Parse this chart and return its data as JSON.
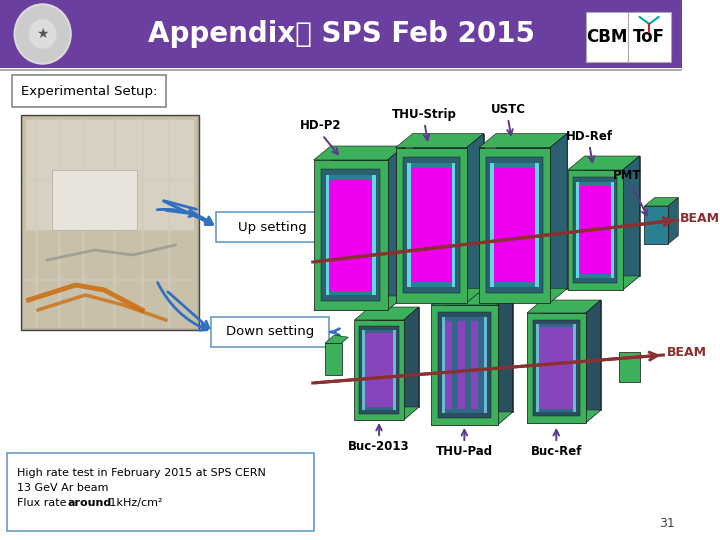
{
  "title": "Appendix： SPS Feb 2015",
  "bg_color": "#f0f0f0",
  "header_color": "#6B3FA0",
  "header_text_color": "#ffffff",
  "slide_number": "31",
  "experimental_setup_label": "Experimental Setup:",
  "labels": {
    "THU_Strip": "THU-Strip",
    "USTC": "USTC",
    "HD_Ref": "HD-Ref",
    "HD_P2": "HD-P2",
    "BEAM_top": "BEAM",
    "Up_setting": "Up setting",
    "PMT": "PMT",
    "Down_setting": "Down setting",
    "BEAM_bot": "BEAM",
    "Buc2013": "Buc-2013",
    "THU_Pad": "THU-Pad",
    "Buc_Ref": "Buc-Ref"
  },
  "beam_color": "#8B3030",
  "arrow_color_purple": "#5B3A8E",
  "arrow_color_blue": "#3070C0",
  "det_green": "#3CB05A",
  "det_dark_teal": "#2A6070",
  "det_teal": "#2A8090",
  "det_cyan": "#60D8E0",
  "det_magenta": "#EE00EE",
  "det_purple": "#8844BB"
}
